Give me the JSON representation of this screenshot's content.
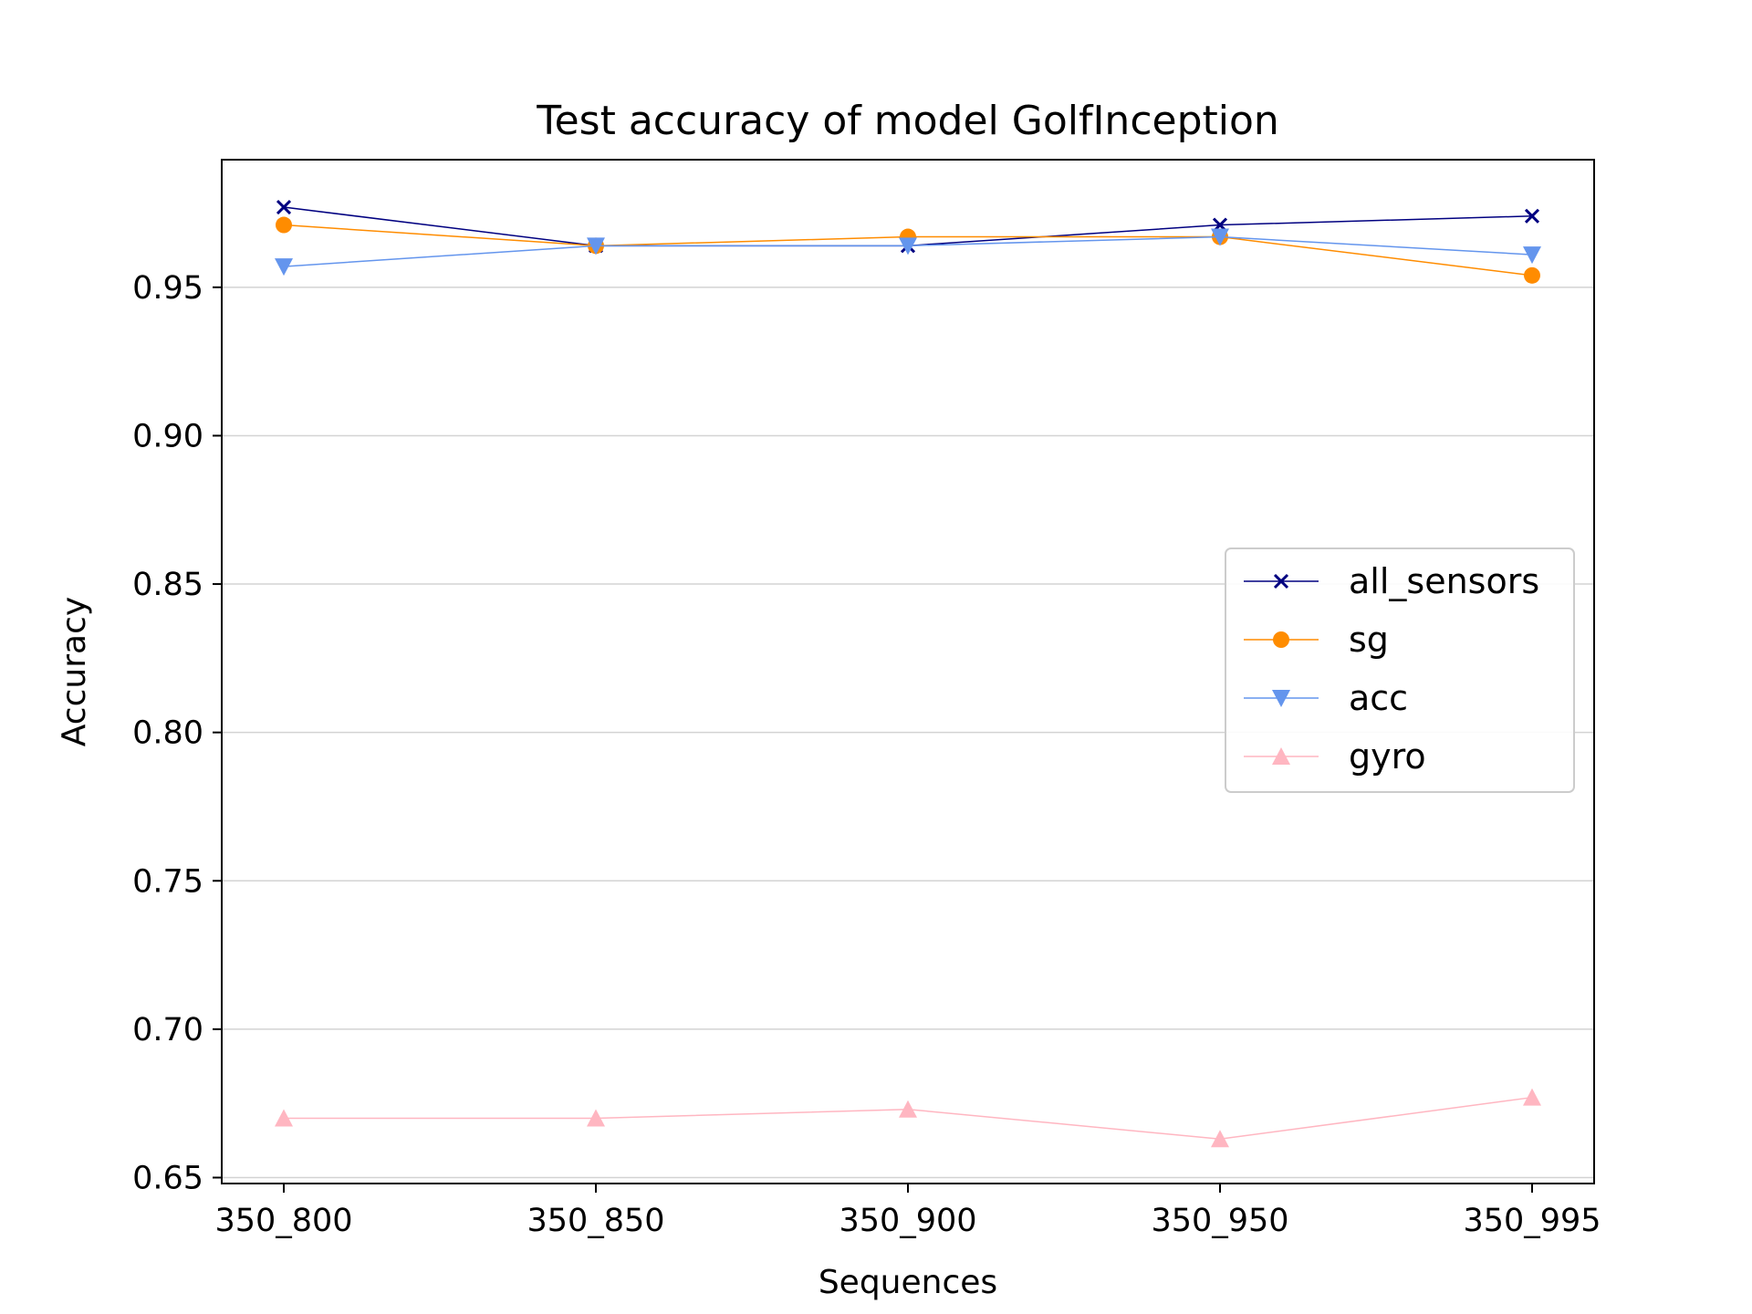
{
  "chart_data": {
    "type": "line",
    "title": "Test accuracy of model GolfInception",
    "xlabel": "Sequences",
    "ylabel": "Accuracy",
    "categories": [
      "350_800",
      "350_850",
      "350_900",
      "350_950",
      "350_995"
    ],
    "ylim": [
      0.648,
      0.993
    ],
    "yticks": [
      0.65,
      0.7,
      0.75,
      0.8,
      0.85,
      0.9,
      0.95
    ],
    "ytick_labels": [
      "0.65",
      "0.70",
      "0.75",
      "0.80",
      "0.85",
      "0.90",
      "0.95"
    ],
    "grid": "horizontal",
    "legend_position": "center-right",
    "series": [
      {
        "name": "all_sensors",
        "color": "#000080",
        "marker": "x",
        "values": [
          0.977,
          0.964,
          0.964,
          0.971,
          0.974
        ]
      },
      {
        "name": "sg",
        "color": "#ff8c00",
        "marker": "circle",
        "values": [
          0.971,
          0.964,
          0.967,
          0.967,
          0.954
        ]
      },
      {
        "name": "acc",
        "color": "#6495ed",
        "marker": "triangle-down",
        "values": [
          0.957,
          0.964,
          0.964,
          0.967,
          0.961
        ]
      },
      {
        "name": "gyro",
        "color": "#ffb6c1",
        "marker": "triangle-up",
        "values": [
          0.67,
          0.67,
          0.673,
          0.663,
          0.677
        ]
      }
    ]
  }
}
